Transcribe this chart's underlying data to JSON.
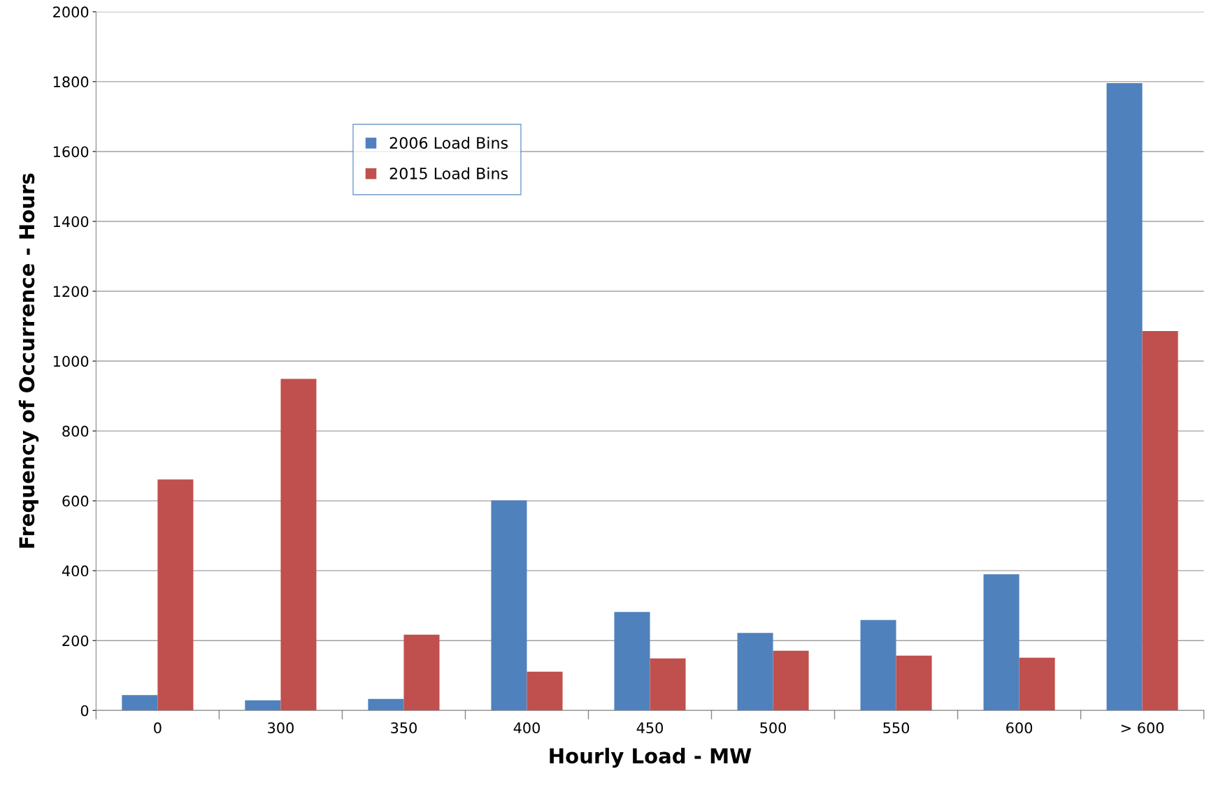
{
  "chart_data": {
    "type": "bar",
    "xlabel": "Hourly Load - MW",
    "ylabel": "Frequency of Occurrence - Hours",
    "categories": [
      "0",
      "300",
      "350",
      "400",
      "450",
      "500",
      "550",
      "600",
      "> 600"
    ],
    "series": [
      {
        "name": "2006 Load Bins",
        "color": "#4f81bd",
        "values": [
          44,
          29,
          33,
          601,
          282,
          222,
          259,
          390,
          1796
        ]
      },
      {
        "name": "2015 Load Bins",
        "color": "#c0504d",
        "values": [
          661,
          949,
          217,
          111,
          149,
          171,
          157,
          151,
          1086
        ]
      }
    ],
    "ylim": [
      0,
      2000
    ],
    "yticks": [
      0,
      200,
      400,
      600,
      800,
      1000,
      1200,
      1400,
      1600,
      1800,
      2000
    ],
    "grid": "y",
    "legend": "top left"
  }
}
